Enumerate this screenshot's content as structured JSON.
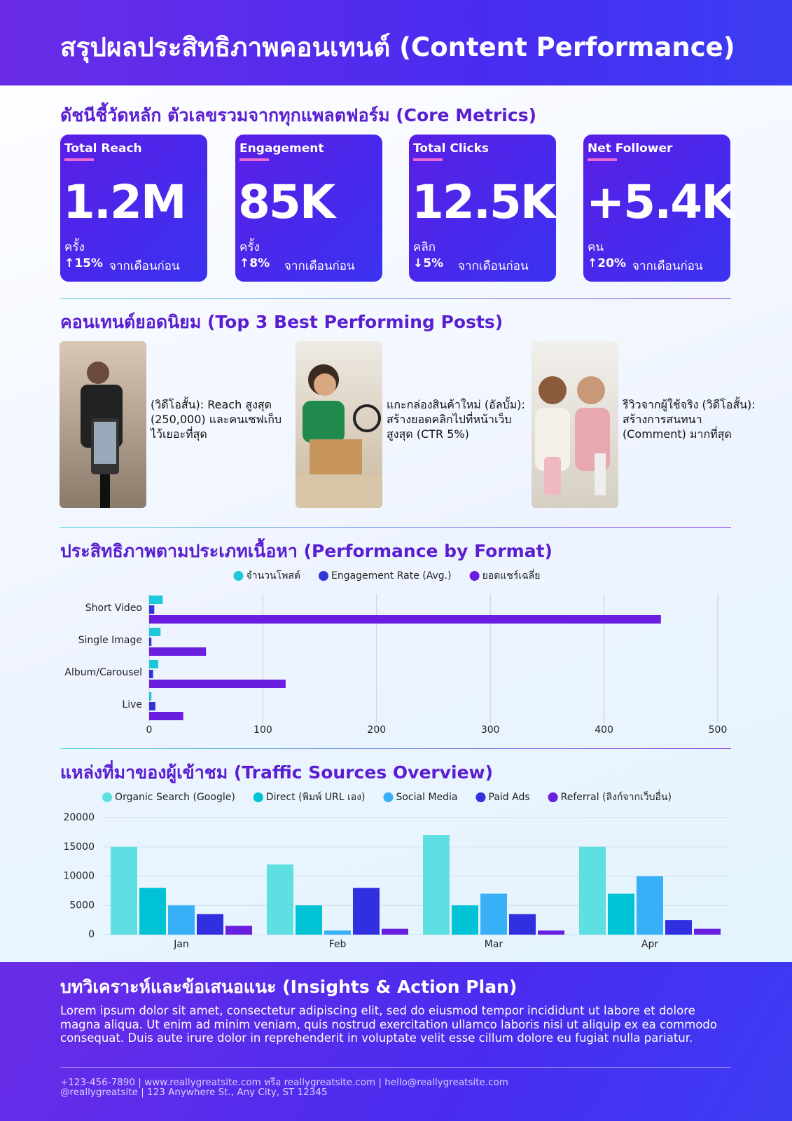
{
  "header": {
    "title": "สรุปผลประสิทธิภาพคอนเทนต์ (Content Performance)"
  },
  "metrics": {
    "title": "ดัชนีชี้วัดหลัก ตัวเลขรวมจากทุกแพลตฟอร์ม (Core Metrics)",
    "cards": [
      {
        "label": "Total Reach",
        "value": "1.2M",
        "unit": "ครั้ง",
        "change": "↑15%",
        "note": "จากเดือนก่อน"
      },
      {
        "label": "Engagement",
        "value": "85K",
        "unit": "ครั้ง",
        "change": "↑8%",
        "note": "จากเดือนก่อน"
      },
      {
        "label": "Total Clicks",
        "value": "12.5K",
        "unit": "คลิก",
        "change": "↓5%",
        "note": "จากเดือนก่อน"
      },
      {
        "label": "Net Follower",
        "value": "+5.4K",
        "unit": "คน",
        "change": "↑20%",
        "note": "จากเดือนก่อน"
      }
    ]
  },
  "posts": {
    "title": "คอนเทนต์ยอดนิยม (Top 3 Best Performing Posts)",
    "items": [
      {
        "text": "(วิดีโอสั้น): Reach สูงสุด (250,000) และคนเซฟเก็บไว้เยอะที่สุด"
      },
      {
        "text": "แกะกล่องสินค้าใหม่ (อัลบั้ม): สร้างยอดคลิกไปที่หน้าเว็บสูงสุด (CTR 5%)"
      },
      {
        "text": "รีวิวจากผู้ใช้จริง (วิดีโอสั้น): สร้างการสนทนา (Comment) มากที่สุด"
      }
    ]
  },
  "chart_data": [
    {
      "type": "bar",
      "horizontal": true,
      "title": "ประสิทธิภาพตามประเภทเนื้อหา (Performance by Format)",
      "categories": [
        "Short Video",
        "Single Image",
        "Album/Carousel",
        "Live"
      ],
      "series": [
        {
          "name": "จำนวนโพสต์",
          "color": "#1ec8d8",
          "values": [
            12,
            10,
            8,
            2
          ]
        },
        {
          "name": "Engagement Rate (Avg.)",
          "color": "#3434d8",
          "values": [
            4.5,
            2,
            3.5,
            5.5
          ]
        },
        {
          "name": "ยอดแชร์เฉลี่ย",
          "color": "#6a1ee0",
          "values": [
            450,
            50,
            120,
            30
          ]
        }
      ],
      "xlim": [
        0,
        500
      ],
      "xticks": [
        0,
        100,
        200,
        300,
        400,
        500
      ],
      "grid": true
    },
    {
      "type": "bar",
      "horizontal": false,
      "title": "แหล่งที่มาของผู้เข้าชม (Traffic Sources Overview)",
      "categories": [
        "Jan",
        "Feb",
        "Mar",
        "Apr"
      ],
      "series": [
        {
          "name": "Organic Search (Google)",
          "color": "#5ee0e2",
          "values": [
            15000,
            12000,
            17000,
            15000
          ]
        },
        {
          "name": "Direct (พิมพ์ URL เอง)",
          "color": "#00c4d6",
          "values": [
            8000,
            5000,
            5000,
            7000
          ]
        },
        {
          "name": "Social Media",
          "color": "#38b0f8",
          "values": [
            5000,
            700,
            7000,
            10000
          ]
        },
        {
          "name": "Paid Ads",
          "color": "#3030e0",
          "values": [
            3500,
            8000,
            3500,
            2500
          ]
        },
        {
          "name": "Referral (ลิงก์จากเว็บอื่น)",
          "color": "#6a1ee0",
          "values": [
            1500,
            1000,
            700,
            1000
          ]
        }
      ],
      "ylim": [
        0,
        20000
      ],
      "yticks": [
        0,
        5000,
        10000,
        15000,
        20000
      ],
      "grid": true
    }
  ],
  "insights": {
    "title": "บทวิเคราะห์และข้อเสนอแนะ (Insights & Action Plan)",
    "text": "Lorem ipsum dolor sit amet, consectetur adipiscing elit, sed do eiusmod tempor incididunt ut labore et dolore magna aliqua. Ut enim ad minim veniam, quis nostrud exercitation ullamco laboris nisi ut aliquip ex ea commodo consequat. Duis aute irure dolor in reprehenderit in voluptate velit esse cillum dolore eu fugiat nulla pariatur."
  },
  "footer": {
    "line1": "+123-456-7890 | www.reallygreatsite.com หรือ reallygreatsite.com | hello@reallygreatsite.com",
    "line2": "@reallygreatsite | 123 Anywhere St., Any City, ST 12345"
  }
}
